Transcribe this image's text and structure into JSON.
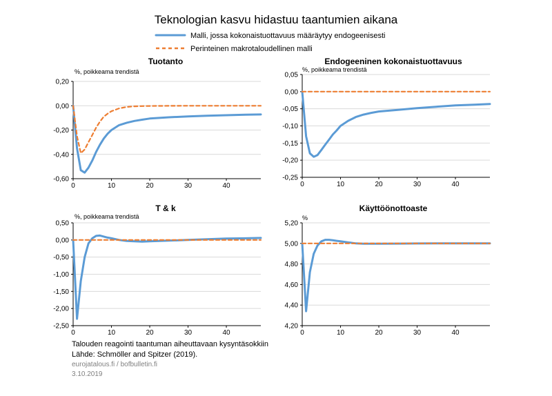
{
  "title": "Teknologian kasvu hidastuu taantumien aikana",
  "legend": {
    "endogenous": "Malli, jossa kokonaistuottavuus määräytyy endogeenisesti",
    "traditional": "Perinteinen makrotaloudellinen malli"
  },
  "colors": {
    "endogenous": "#5b9bd5",
    "traditional": "#ed7d31",
    "grid": "#d9d9d9",
    "axis": "#000000"
  },
  "footer": {
    "caption": "Talouden reagointi taantuman aiheuttavaan kysyntäsokkiin",
    "source": "Lähde: Schmöller and Spitzer (2019).",
    "site": "eurojatalous.fi / bofbulletin.fi",
    "date": "3.10.2019"
  },
  "chart_data": [
    {
      "type": "line",
      "title": "Tuotanto",
      "ylabel": "%, poikkeama trendistä",
      "xlim": [
        0,
        49
      ],
      "ylim": [
        -0.6,
        0.2
      ],
      "yticks": [
        -0.6,
        -0.4,
        -0.2,
        0.0,
        0.2
      ],
      "ytick_labels": [
        "-0,60",
        "-0,40",
        "-0,20",
        "0,00",
        "0,20"
      ],
      "xticks": [
        0,
        10,
        20,
        30,
        40
      ],
      "xtick_labels": [
        "0",
        "10",
        "20",
        "30",
        "40"
      ],
      "series": [
        {
          "name": "endogenous",
          "x": [
            0,
            1,
            2,
            3,
            4,
            5,
            6,
            7,
            8,
            9,
            10,
            12,
            14,
            16,
            18,
            20,
            25,
            30,
            35,
            40,
            45,
            49
          ],
          "y": [
            0.0,
            -0.35,
            -0.53,
            -0.55,
            -0.51,
            -0.45,
            -0.38,
            -0.32,
            -0.27,
            -0.23,
            -0.2,
            -0.16,
            -0.14,
            -0.125,
            -0.115,
            -0.105,
            -0.095,
            -0.088,
            -0.082,
            -0.078,
            -0.074,
            -0.072
          ]
        },
        {
          "name": "traditional",
          "x": [
            0,
            1,
            2,
            3,
            4,
            5,
            6,
            7,
            8,
            9,
            10,
            12,
            14,
            16,
            18,
            20,
            25,
            30,
            35,
            40,
            45,
            49
          ],
          "y": [
            0.0,
            -0.25,
            -0.39,
            -0.36,
            -0.3,
            -0.24,
            -0.18,
            -0.13,
            -0.09,
            -0.065,
            -0.045,
            -0.022,
            -0.01,
            -0.005,
            -0.003,
            -0.002,
            -0.001,
            0.0,
            0.0,
            0.0,
            0.0,
            0.0
          ]
        }
      ]
    },
    {
      "type": "line",
      "title": "Endogeeninen kokonaistuottavuus",
      "ylabel": "%, poikkeama trendistä",
      "xlim": [
        0,
        49
      ],
      "ylim": [
        -0.25,
        0.05
      ],
      "yticks": [
        -0.25,
        -0.2,
        -0.15,
        -0.1,
        -0.05,
        0.0,
        0.05
      ],
      "ytick_labels": [
        "-0,25",
        "-0,20",
        "-0,15",
        "-0,10",
        "-0,05",
        "0,00",
        "0,05"
      ],
      "xticks": [
        0,
        10,
        20,
        30,
        40
      ],
      "xtick_labels": [
        "0",
        "10",
        "20",
        "30",
        "40"
      ],
      "series": [
        {
          "name": "endogenous",
          "x": [
            0,
            1,
            2,
            3,
            4,
            5,
            6,
            7,
            8,
            9,
            10,
            12,
            14,
            16,
            18,
            20,
            25,
            30,
            35,
            40,
            45,
            49
          ],
          "y": [
            0.0,
            -0.13,
            -0.18,
            -0.19,
            -0.185,
            -0.17,
            -0.155,
            -0.14,
            -0.125,
            -0.113,
            -0.1,
            -0.085,
            -0.074,
            -0.067,
            -0.062,
            -0.058,
            -0.053,
            -0.048,
            -0.044,
            -0.04,
            -0.038,
            -0.036
          ]
        },
        {
          "name": "traditional",
          "x": [
            0,
            49
          ],
          "y": [
            0.0,
            0.0
          ]
        }
      ]
    },
    {
      "type": "line",
      "title": "T & k",
      "ylabel": "%, poikkeama trendistä",
      "xlim": [
        0,
        49
      ],
      "ylim": [
        -2.5,
        0.5
      ],
      "yticks": [
        -2.5,
        -2.0,
        -1.5,
        -1.0,
        -0.5,
        0.0,
        0.5
      ],
      "ytick_labels": [
        "-2,50",
        "-2,00",
        "-1,50",
        "-1,00",
        "-0,50",
        "0,00",
        "0,50"
      ],
      "xticks": [
        0,
        10,
        20,
        30,
        40
      ],
      "xtick_labels": [
        "0",
        "10",
        "20",
        "30",
        "40"
      ],
      "series": [
        {
          "name": "endogenous",
          "x": [
            0,
            1,
            2,
            3,
            4,
            5,
            6,
            7,
            8,
            9,
            10,
            12,
            14,
            16,
            18,
            20,
            25,
            30,
            35,
            40,
            45,
            49
          ],
          "y": [
            0.0,
            -2.3,
            -1.2,
            -0.5,
            -0.1,
            0.05,
            0.12,
            0.13,
            0.1,
            0.07,
            0.05,
            0.0,
            -0.03,
            -0.04,
            -0.05,
            -0.04,
            -0.02,
            0.0,
            0.02,
            0.04,
            0.05,
            0.06
          ]
        },
        {
          "name": "traditional",
          "x": [
            0,
            49
          ],
          "y": [
            0.0,
            0.0
          ]
        }
      ]
    },
    {
      "type": "line",
      "title": "Käyttöönottoaste",
      "ylabel": "%",
      "xlim": [
        0,
        49
      ],
      "ylim": [
        4.2,
        5.2
      ],
      "yticks": [
        4.2,
        4.4,
        4.6,
        4.8,
        5.0,
        5.2
      ],
      "ytick_labels": [
        "4,20",
        "4,40",
        "4,60",
        "4,80",
        "5,00",
        "5,20"
      ],
      "xticks": [
        0,
        10,
        20,
        30,
        40
      ],
      "xtick_labels": [
        "0",
        "10",
        "20",
        "30",
        "40"
      ],
      "series": [
        {
          "name": "endogenous",
          "x": [
            0,
            1,
            2,
            3,
            4,
            5,
            6,
            7,
            8,
            9,
            10,
            12,
            14,
            16,
            18,
            20,
            25,
            30,
            35,
            40,
            45,
            49
          ],
          "y": [
            5.0,
            4.34,
            4.72,
            4.9,
            4.98,
            5.02,
            5.035,
            5.035,
            5.03,
            5.025,
            5.02,
            5.01,
            5.0,
            4.997,
            4.997,
            4.997,
            4.998,
            4.999,
            5.0,
            5.0,
            5.0,
            5.0
          ]
        },
        {
          "name": "traditional",
          "x": [
            0,
            49
          ],
          "y": [
            5.0,
            5.0
          ]
        }
      ]
    }
  ]
}
